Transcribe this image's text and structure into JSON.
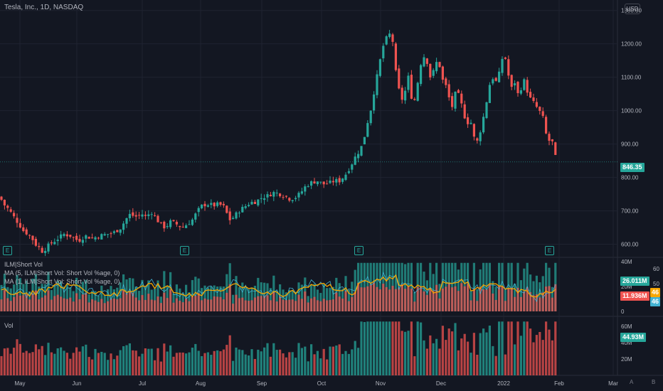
{
  "header": {
    "title": "Tesla, Inc., 1D, NASDAQ",
    "currency": "USD"
  },
  "colors": {
    "up": "#26a69a",
    "down": "#ef5350",
    "bg": "#131722",
    "grid": "#1f2330",
    "ma5": "#f7a600",
    "ma1": "#42b2d2"
  },
  "chart_data": [
    {
      "type": "candlestick",
      "x_tick_labels": [
        "May",
        "Jun",
        "Jul",
        "Aug",
        "Sep",
        "Oct",
        "Nov",
        "Dec",
        "2022",
        "Feb",
        "Mar"
      ],
      "y_tick_labels": [
        "600.00",
        "700.00",
        "800.00",
        "900.00",
        "1000.00",
        "1100.00",
        "1200.00",
        "1300.00"
      ],
      "ylim": [
        565,
        1310
      ],
      "last_price": "846.35",
      "earnings_markers": [
        "E",
        "E",
        "E",
        "E"
      ],
      "close_series": [
        [
          0,
          742
        ],
        [
          5,
          720
        ],
        [
          12,
          705
        ],
        [
          20,
          680
        ],
        [
          27,
          660
        ],
        [
          33,
          640
        ],
        [
          40,
          630
        ],
        [
          45,
          618
        ],
        [
          50,
          600
        ],
        [
          55,
          590
        ],
        [
          58,
          578
        ],
        [
          63,
          585
        ],
        [
          70,
          600
        ],
        [
          80,
          615
        ],
        [
          90,
          630
        ],
        [
          100,
          625
        ],
        [
          110,
          610
        ],
        [
          120,
          625
        ],
        [
          130,
          618
        ],
        [
          140,
          625
        ],
        [
          150,
          630
        ],
        [
          160,
          635
        ],
        [
          170,
          650
        ],
        [
          177,
          675
        ],
        [
          183,
          690
        ],
        [
          190,
          682
        ],
        [
          200,
          690
        ],
        [
          206,
          680
        ],
        [
          212,
          700
        ],
        [
          220,
          675
        ],
        [
          226,
          660
        ],
        [
          232,
          650
        ],
        [
          240,
          668
        ],
        [
          248,
          660
        ],
        [
          256,
          650
        ],
        [
          263,
          660
        ],
        [
          270,
          672
        ],
        [
          278,
          700
        ],
        [
          285,
          718
        ],
        [
          292,
          720
        ],
        [
          300,
          716
        ],
        [
          308,
          720
        ],
        [
          316,
          710
        ],
        [
          322,
          672
        ],
        [
          328,
          680
        ],
        [
          336,
          700
        ],
        [
          345,
          714
        ],
        [
          352,
          725
        ],
        [
          360,
          728
        ],
        [
          368,
          740
        ],
        [
          376,
          745
        ],
        [
          384,
          755
        ],
        [
          392,
          752
        ],
        [
          400,
          745
        ],
        [
          408,
          735
        ],
        [
          415,
          740
        ],
        [
          422,
          752
        ],
        [
          430,
          775
        ],
        [
          438,
          785
        ],
        [
          446,
          790
        ],
        [
          454,
          780
        ],
        [
          462,
          782
        ],
        [
          470,
          790
        ],
        [
          478,
          790
        ],
        [
          486,
          810
        ],
        [
          493,
          835
        ],
        [
          499,
          860
        ],
        [
          505,
          880
        ],
        [
          510,
          900
        ],
        [
          516,
          960
        ],
        [
          522,
          1010
        ],
        [
          528,
          1085
        ],
        [
          532,
          1120
        ],
        [
          537,
          1185
        ],
        [
          541,
          1205
        ],
        [
          545,
          1225
        ],
        [
          549,
          1230
        ],
        [
          553,
          1200
        ],
        [
          557,
          1100
        ],
        [
          561,
          1060
        ],
        [
          566,
          1030
        ],
        [
          571,
          1070
        ],
        [
          575,
          1110
        ],
        [
          580,
          1010
        ],
        [
          585,
          1050
        ],
        [
          590,
          1130
        ],
        [
          595,
          1165
        ],
        [
          600,
          1150
        ],
        [
          605,
          1100
        ],
        [
          610,
          1120
        ],
        [
          616,
          1160
        ],
        [
          621,
          1095
        ],
        [
          626,
          1080
        ],
        [
          631,
          1040
        ],
        [
          636,
          1010
        ],
        [
          641,
          1060
        ],
        [
          646,
          1040
        ],
        [
          651,
          1000
        ],
        [
          656,
          960
        ],
        [
          661,
          975
        ],
        [
          666,
          920
        ],
        [
          672,
          905
        ],
        [
          677,
          960
        ],
        [
          682,
          1000
        ],
        [
          687,
          1070
        ],
        [
          692,
          1100
        ],
        [
          698,
          1085
        ],
        [
          703,
          1120
        ],
        [
          708,
          1180
        ],
        [
          713,
          1130
        ],
        [
          718,
          1060
        ],
        [
          723,
          1090
        ],
        [
          728,
          1050
        ],
        [
          733,
          1070
        ],
        [
          738,
          1095
        ],
        [
          742,
          1050
        ],
        [
          747,
          1030
        ],
        [
          752,
          1020
        ],
        [
          757,
          1000
        ],
        [
          762,
          990
        ],
        [
          766,
          950
        ],
        [
          770,
          900
        ],
        [
          774,
          920
        ],
        [
          778,
          895
        ],
        [
          782,
          846
        ]
      ]
    },
    {
      "type": "bar",
      "title": "ILM|Short Vol",
      "legend": [
        "MA (5, ILM|Short Vol: Short Vol %age, 0)",
        "MA (1, ILM|Short Vol: Short Vol %age, 0)"
      ],
      "y_tick_labels": [
        "0",
        "20M",
        "40M",
        "50",
        "60"
      ],
      "value_tags": [
        "26.011M",
        "11.936M",
        "46",
        "46"
      ]
    },
    {
      "type": "bar",
      "title": "Vol",
      "y_tick_labels": [
        "20M",
        "40M",
        "60M"
      ],
      "value_tags": [
        "44.93M"
      ]
    }
  ],
  "bottom_buttons": [
    "A",
    "B"
  ]
}
